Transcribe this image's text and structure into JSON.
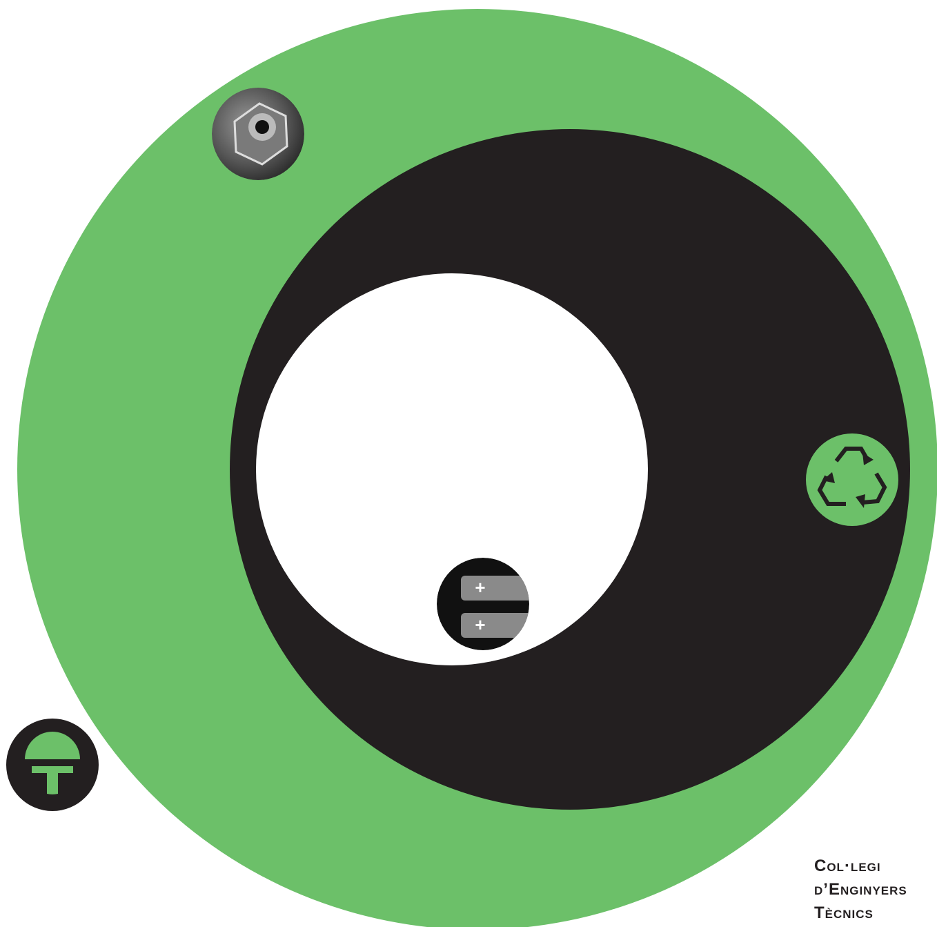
{
  "brand": {
    "lines": [
      "Col·legi",
      "d’Enginyers",
      "Tècnics"
    ]
  }
}
